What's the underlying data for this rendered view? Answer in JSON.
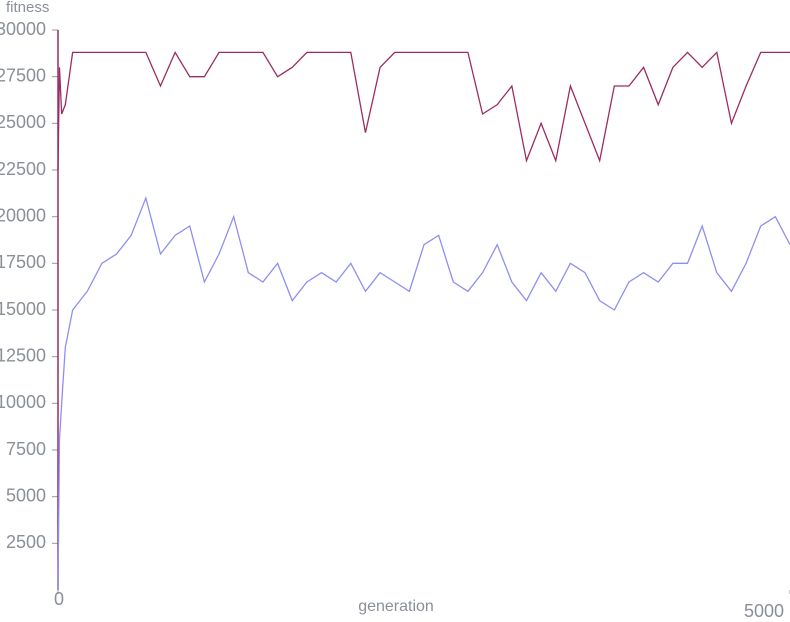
{
  "chart_data": {
    "type": "line",
    "y_label": "fitness",
    "x_label": "generation",
    "x": [
      0,
      10,
      25,
      50,
      100,
      200,
      300,
      400,
      500,
      600,
      700,
      800,
      900,
      1000,
      1100,
      1200,
      1300,
      1400,
      1500,
      1600,
      1700,
      1800,
      1900,
      2000,
      2100,
      2200,
      2300,
      2400,
      2500,
      2600,
      2700,
      2800,
      2900,
      3000,
      3100,
      3200,
      3300,
      3400,
      3500,
      3600,
      3700,
      3800,
      3900,
      4000,
      4100,
      4200,
      4300,
      4400,
      4500,
      4600,
      4700,
      4800,
      4900,
      5000
    ],
    "series": [
      {
        "color": "#9b2d62",
        "values": [
          22500,
          28000,
          25500,
          26000,
          28800,
          28800,
          28800,
          28800,
          28800,
          28800,
          27000,
          28800,
          27500,
          27500,
          28800,
          28800,
          28800,
          28800,
          27500,
          28000,
          28800,
          28800,
          28800,
          28800,
          24500,
          28000,
          28800,
          28800,
          28800,
          28800,
          28800,
          28800,
          25500,
          26000,
          27000,
          23000,
          25000,
          23000,
          27000,
          25000,
          23000,
          27000,
          27000,
          28000,
          26000,
          28000,
          28800,
          28000,
          28800,
          25000,
          27000,
          28800,
          28800,
          28800
        ]
      },
      {
        "color": "#8f8ff0",
        "values": [
          0,
          8000,
          10000,
          13000,
          15000,
          16000,
          17500,
          18000,
          19000,
          21000,
          18000,
          19000,
          19500,
          16500,
          18000,
          20000,
          17000,
          16500,
          17500,
          15500,
          16500,
          17000,
          16500,
          17500,
          16000,
          17000,
          16500,
          16000,
          18500,
          19000,
          16500,
          16000,
          17000,
          18500,
          16500,
          15500,
          17000,
          16000,
          17500,
          17000,
          15500,
          15000,
          16500,
          17000,
          16500,
          17500,
          17500,
          19500,
          17000,
          16000,
          17500,
          19500,
          20000,
          18500
        ]
      }
    ],
    "xlim": [
      0,
      5000
    ],
    "xticks": [
      0,
      5000
    ],
    "ylim": [
      0,
      30000
    ],
    "yticks": [
      2500,
      5000,
      7500,
      10000,
      12500,
      15000,
      17500,
      20000,
      22500,
      25000,
      27500,
      30000
    ]
  }
}
